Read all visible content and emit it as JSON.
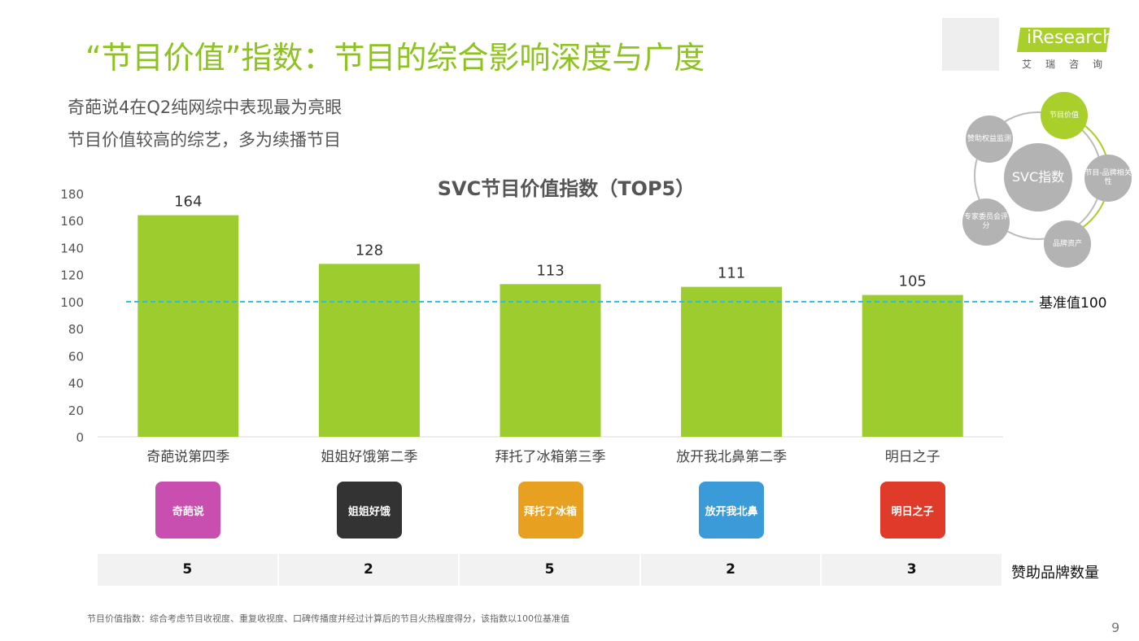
{
  "title": "“节目价值”指数：节目的综合影响深度与广度",
  "subtitles": [
    "奇葩说4在Q2纯网综中表现最为亮眼",
    "节目价值较高的综艺，多为续播节目"
  ],
  "brand": {
    "name": "iResearch",
    "cn": "艾瑞咨询",
    "accent": "#8dc21f"
  },
  "svc_diagram": {
    "center": "SVC指数",
    "nodes": [
      "节目价值",
      "节目-品牌相关性",
      "品牌资产",
      "专家委员会评分",
      "赞助权益监测"
    ],
    "highlight": "节目价值"
  },
  "chart_data": {
    "type": "bar",
    "title": "SVC节目价值指数（TOP5）",
    "categories": [
      "奇葩说第四季",
      "姐姐好饿第二季",
      "拜托了冰箱第三季",
      "放开我北鼻第二季",
      "明日之子"
    ],
    "values": [
      164,
      128,
      113,
      111,
      105
    ],
    "ylim": [
      0,
      180
    ],
    "yticks": [
      0,
      20,
      40,
      60,
      80,
      100,
      120,
      140,
      160,
      180
    ],
    "bar_color": "#9ccc2e",
    "reference_line": {
      "value": 100,
      "label": "基准值100",
      "color": "#2bbde0"
    },
    "grid": false
  },
  "logos": [
    "奇葩说",
    "姐姐好饿",
    "拜托了冰箱",
    "放开我北鼻",
    "明日之子"
  ],
  "sponsors": {
    "label": "赞助品牌数量",
    "values": [
      "5",
      "2",
      "5",
      "2",
      "3"
    ]
  },
  "footnote": "节目价值指数：综合考虑节目收视度、重复收视度、口碑传播度并经过计算后的节目火热程度得分，该指数以100位基准值",
  "page": "9"
}
